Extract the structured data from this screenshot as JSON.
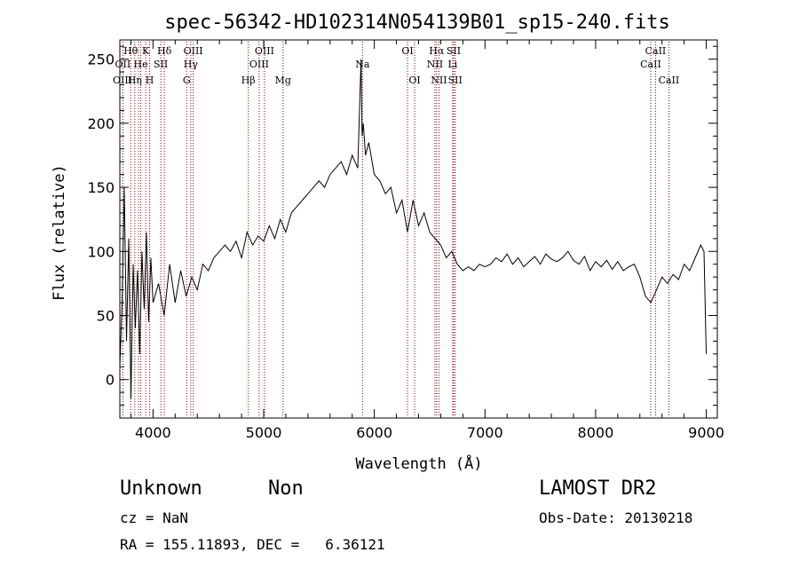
{
  "chart_data": {
    "type": "line",
    "title": "spec-56342-HD102314N054139B01_sp15-240.fits",
    "xlabel": "Wavelength (Å)",
    "ylabel": "Flux (relative)",
    "xlim": [
      3700,
      9100
    ],
    "ylim": [
      -30,
      265
    ],
    "x_ticks": [
      4000,
      5000,
      6000,
      7000,
      8000,
      9000
    ],
    "y_ticks": [
      0,
      50,
      100,
      150,
      200,
      250
    ],
    "grid": false,
    "line_color": "#000000",
    "marker_color": "#8b0000",
    "series": [
      {
        "x": [
          3700,
          3720,
          3740,
          3760,
          3780,
          3800,
          3820,
          3840,
          3860,
          3880,
          3900,
          3920,
          3940,
          3960,
          3980,
          4000,
          4050,
          4100,
          4150,
          4200,
          4250,
          4300,
          4350,
          4400,
          4450,
          4500,
          4550,
          4600,
          4650,
          4700,
          4750,
          4800,
          4850,
          4900,
          4950,
          5000,
          5050,
          5100,
          5150,
          5200,
          5250,
          5300,
          5350,
          5400,
          5450,
          5500,
          5550,
          5600,
          5650,
          5700,
          5750,
          5800,
          5850,
          5880,
          5890,
          5900,
          5920,
          5950,
          6000,
          6050,
          6100,
          6150,
          6200,
          6250,
          6300,
          6350,
          6400,
          6450,
          6500,
          6550,
          6600,
          6650,
          6700,
          6750,
          6800,
          6850,
          6900,
          6950,
          7000,
          7050,
          7100,
          7150,
          7200,
          7250,
          7300,
          7350,
          7400,
          7450,
          7500,
          7550,
          7600,
          7650,
          7700,
          7750,
          7800,
          7850,
          7900,
          7950,
          8000,
          8050,
          8100,
          8150,
          8200,
          8250,
          8300,
          8350,
          8400,
          8450,
          8500,
          8550,
          8600,
          8650,
          8700,
          8750,
          8800,
          8850,
          8900,
          8950,
          8980,
          9000
        ],
        "y": [
          10,
          60,
          150,
          30,
          110,
          -15,
          90,
          40,
          85,
          20,
          100,
          55,
          115,
          45,
          95,
          60,
          75,
          50,
          90,
          60,
          85,
          65,
          80,
          70,
          90,
          85,
          95,
          100,
          105,
          100,
          108,
          95,
          115,
          105,
          112,
          108,
          120,
          110,
          125,
          115,
          130,
          135,
          140,
          145,
          150,
          155,
          150,
          160,
          165,
          170,
          160,
          175,
          165,
          250,
          190,
          200,
          175,
          185,
          160,
          155,
          145,
          150,
          130,
          140,
          115,
          140,
          120,
          130,
          115,
          110,
          105,
          95,
          100,
          90,
          85,
          88,
          85,
          90,
          88,
          90,
          95,
          92,
          98,
          90,
          95,
          88,
          92,
          96,
          90,
          98,
          94,
          92,
          95,
          100,
          93,
          90,
          96,
          85,
          92,
          88,
          93,
          86,
          92,
          85,
          88,
          90,
          80,
          65,
          60,
          70,
          80,
          75,
          82,
          78,
          90,
          85,
          95,
          105,
          100,
          20
        ]
      }
    ],
    "line_markers": [
      {
        "label": "Hθ",
        "x": 3798,
        "row": 1,
        "dx": 0
      },
      {
        "label": "OII",
        "x": 3727,
        "row": 2,
        "dx": 0
      },
      {
        "label": "He",
        "x": 3889,
        "row": 2,
        "dx": 0
      },
      {
        "label": "SII",
        "x": 4070,
        "row": 2,
        "dx": 0
      },
      {
        "label": "OIII",
        "x": 3869,
        "row": 3,
        "dx": -18
      },
      {
        "label": "Hη",
        "x": 3835,
        "row": 3,
        "dx": 0
      },
      {
        "label": "H",
        "x": 3969,
        "row": 3,
        "dx": 0
      },
      {
        "label": "K",
        "x": 3934,
        "row": 1,
        "dx": 0
      },
      {
        "label": "Hδ",
        "x": 4102,
        "row": 1,
        "dx": 0
      },
      {
        "label": "OIII",
        "x": 4363,
        "row": 1,
        "dx": 0
      },
      {
        "label": "Hγ",
        "x": 4341,
        "row": 2,
        "dx": 0
      },
      {
        "label": "G",
        "x": 4304,
        "row": 3,
        "dx": 0
      },
      {
        "label": "OIII",
        "x": 5007,
        "row": 1,
        "dx": 0
      },
      {
        "label": "OIII",
        "x": 4959,
        "row": 2,
        "dx": 0
      },
      {
        "label": "Hβ",
        "x": 4861,
        "row": 3,
        "dx": 0
      },
      {
        "label": "Mg",
        "x": 5175,
        "row": 3,
        "dx": 0
      },
      {
        "label": "Na",
        "x": 5893,
        "row": 2,
        "dx": 0
      },
      {
        "label": "OI",
        "x": 6300,
        "row": 1,
        "dx": 0
      },
      {
        "label": "OI",
        "x": 6364,
        "row": 3,
        "dx": 0
      },
      {
        "label": "Hα",
        "x": 6563,
        "row": 1,
        "dx": 0
      },
      {
        "label": "SII",
        "x": 6717,
        "row": 1,
        "dx": 0
      },
      {
        "label": "NII",
        "x": 6548,
        "row": 2,
        "dx": 0
      },
      {
        "label": "Li",
        "x": 6708,
        "row": 2,
        "dx": 0
      },
      {
        "label": "NII",
        "x": 6584,
        "row": 3,
        "dx": 0
      },
      {
        "label": "SII",
        "x": 6731,
        "row": 3,
        "dx": 0
      },
      {
        "label": "CaII",
        "x": 8542,
        "row": 1,
        "dx": 0
      },
      {
        "label": "CaII",
        "x": 8498,
        "row": 2,
        "dx": 0
      },
      {
        "label": "CaII",
        "x": 8662,
        "row": 3,
        "dx": 0
      }
    ]
  },
  "info": {
    "class_label": "Unknown",
    "subclass_label": "Non",
    "survey": "LAMOST DR2",
    "cz_text": "cz = NaN",
    "obs_date": "Obs-Date: 20130218",
    "coords": "RA = 155.11893, DEC =   6.36121"
  }
}
